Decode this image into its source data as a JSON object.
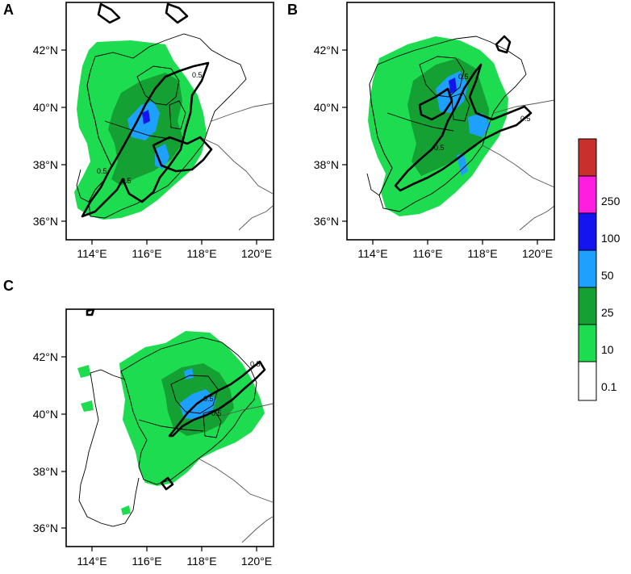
{
  "panels": [
    {
      "id": "A",
      "label": "A",
      "yticks": [
        "42°N",
        "40°N",
        "38°N",
        "36°N"
      ],
      "xticks": [
        "114°E",
        "116°E",
        "118°E",
        "120°E"
      ],
      "contour_label": "0.5"
    },
    {
      "id": "B",
      "label": "B",
      "yticks": [
        "42°N",
        "40°N",
        "38°N",
        "36°N"
      ],
      "xticks": [
        "114°E",
        "116°E",
        "118°E",
        "120°E"
      ],
      "contour_label": "0.5"
    },
    {
      "id": "C",
      "label": "C",
      "yticks": [
        "42°N",
        "40°N",
        "38°N",
        "36°N"
      ],
      "xticks": [
        "114°E",
        "116°E",
        "118°E",
        "120°E"
      ],
      "contour_label": "0.5"
    }
  ],
  "colorbar": {
    "boundaries": [
      "250",
      "100",
      "50",
      "25",
      "10",
      "0.1"
    ],
    "colors": [
      "#c8302c",
      "#ff1ee0",
      "#1414f0",
      "#1ea0ff",
      "#14a032",
      "#1edc50",
      "#ffffff"
    ]
  }
}
